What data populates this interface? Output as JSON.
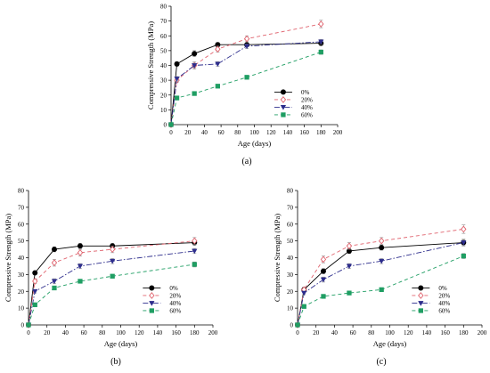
{
  "chart_data": [
    {
      "panel": "a",
      "caption": "(a)",
      "type": "line",
      "xlabel": "Age (days)",
      "ylabel": "Compressive Strength (MPa)",
      "xlim": [
        0,
        200
      ],
      "ylim": [
        0,
        80
      ],
      "xticks": [
        0,
        20,
        40,
        60,
        80,
        100,
        120,
        140,
        160,
        180,
        200
      ],
      "yticks": [
        0,
        10,
        20,
        30,
        40,
        50,
        60,
        70,
        80
      ],
      "legend_position": "bottom-right",
      "x": [
        0,
        7,
        28,
        56,
        91,
        180
      ],
      "series": [
        {
          "name": "0%",
          "color": "#000000",
          "marker": "circle",
          "dash": "solid",
          "values": [
            0,
            41,
            48,
            54,
            54,
            55
          ],
          "errors": [
            0,
            1.5,
            2,
            1.5,
            1,
            1.5
          ]
        },
        {
          "name": "20%",
          "color": "#e0636e",
          "marker": "diamond",
          "dash": "dash",
          "values": [
            0,
            30,
            40,
            51,
            58,
            68
          ],
          "errors": [
            0,
            1.5,
            2.5,
            2,
            2,
            2.5
          ]
        },
        {
          "name": "40%",
          "color": "#2d2d8c",
          "marker": "triangle",
          "dash": "dashdot",
          "values": [
            0,
            31,
            40,
            41,
            53,
            56
          ],
          "errors": [
            0,
            1.5,
            1.5,
            1.5,
            1.5,
            1.5
          ]
        },
        {
          "name": "60%",
          "color": "#1f9e63",
          "marker": "square",
          "dash": "dash",
          "values": [
            0,
            18,
            21,
            26,
            32,
            49
          ],
          "errors": [
            0,
            1,
            1,
            1,
            1,
            1.5
          ]
        }
      ]
    },
    {
      "panel": "b",
      "caption": "(b)",
      "type": "line",
      "xlabel": "Age (days)",
      "ylabel": "Compressive Strength (MPa)",
      "xlim": [
        0,
        200
      ],
      "ylim": [
        0,
        80
      ],
      "xticks": [
        0,
        20,
        40,
        60,
        80,
        100,
        120,
        140,
        160,
        180,
        200
      ],
      "yticks": [
        0,
        10,
        20,
        30,
        40,
        50,
        60,
        70,
        80
      ],
      "legend_position": "bottom-right",
      "x": [
        0,
        7,
        28,
        56,
        91,
        180
      ],
      "series": [
        {
          "name": "0%",
          "color": "#000000",
          "marker": "circle",
          "dash": "solid",
          "values": [
            0,
            31,
            45,
            47,
            47,
            49
          ],
          "errors": [
            0,
            1,
            1.5,
            1.5,
            1.5,
            1.5
          ]
        },
        {
          "name": "20%",
          "color": "#e0636e",
          "marker": "diamond",
          "dash": "dash",
          "values": [
            0,
            26,
            37,
            43,
            45,
            50
          ],
          "errors": [
            0,
            1.5,
            2,
            2,
            2,
            2
          ]
        },
        {
          "name": "40%",
          "color": "#2d2d8c",
          "marker": "triangle",
          "dash": "dashdot",
          "values": [
            0,
            20,
            26,
            35,
            38,
            44
          ],
          "errors": [
            0,
            1,
            1.5,
            1.5,
            1.5,
            1.5
          ]
        },
        {
          "name": "60%",
          "color": "#1f9e63",
          "marker": "square",
          "dash": "dash",
          "values": [
            0,
            12,
            22,
            26,
            29,
            36
          ],
          "errors": [
            0,
            1,
            1,
            1,
            1,
            1.5
          ]
        }
      ]
    },
    {
      "panel": "c",
      "caption": "(c)",
      "type": "line",
      "xlabel": "Age (days)",
      "ylabel": "Compressive Strength (MPa)",
      "xlim": [
        0,
        200
      ],
      "ylim": [
        0,
        80
      ],
      "xticks": [
        0,
        20,
        40,
        60,
        80,
        100,
        120,
        140,
        160,
        180,
        200
      ],
      "yticks": [
        0,
        10,
        20,
        30,
        40,
        50,
        60,
        70,
        80
      ],
      "legend_position": "bottom-right",
      "x": [
        0,
        7,
        28,
        56,
        91,
        180
      ],
      "series": [
        {
          "name": "0%",
          "color": "#000000",
          "marker": "circle",
          "dash": "solid",
          "values": [
            0,
            21,
            32,
            44,
            46,
            49
          ],
          "errors": [
            0,
            1,
            1.5,
            1.5,
            1.5,
            1.5
          ]
        },
        {
          "name": "20%",
          "color": "#e0636e",
          "marker": "diamond",
          "dash": "dash",
          "values": [
            0,
            21,
            39,
            47,
            50,
            57
          ],
          "errors": [
            0,
            1.5,
            2,
            2,
            2,
            2.5
          ]
        },
        {
          "name": "40%",
          "color": "#2d2d8c",
          "marker": "triangle",
          "dash": "dashdot",
          "values": [
            0,
            19,
            27,
            35,
            38,
            49
          ],
          "errors": [
            0,
            1,
            1.5,
            1.5,
            1.5,
            2
          ]
        },
        {
          "name": "60%",
          "color": "#1f9e63",
          "marker": "square",
          "dash": "dash",
          "values": [
            0,
            11,
            17,
            19,
            21,
            41
          ],
          "errors": [
            0,
            1,
            1,
            1,
            1,
            1.5
          ]
        }
      ]
    }
  ]
}
